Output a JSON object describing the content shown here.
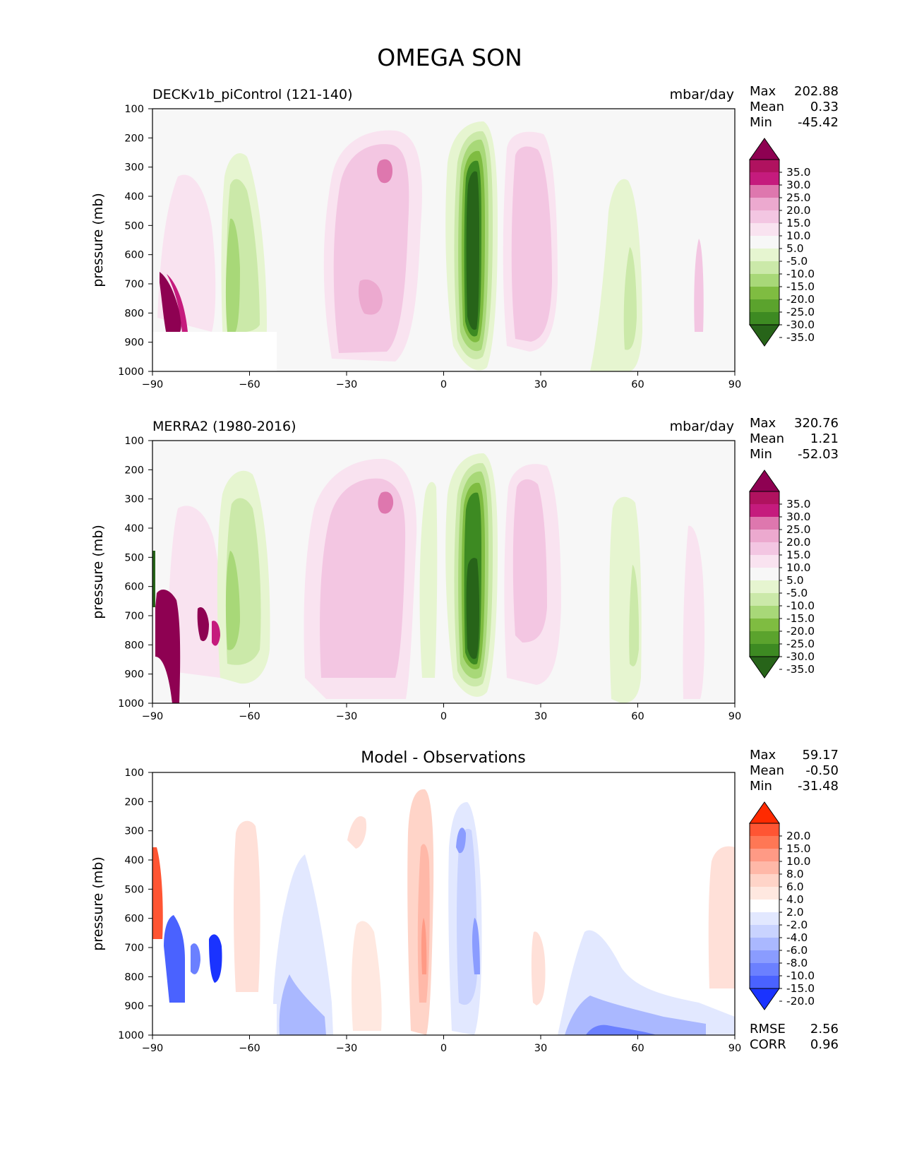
{
  "suptitle": "OMEGA SON",
  "chart_data": [
    {
      "type": "heatmap",
      "subtype": "filled-contour",
      "title_left": "DECKv1b_piControl (121-140)",
      "title_right": "mbar/day",
      "ylabel": "pressure (mb)",
      "xticks": [
        "−90",
        "−60",
        "−30",
        "0",
        "30",
        "60",
        "90"
      ],
      "yticks": [
        "100",
        "200",
        "300",
        "400",
        "500",
        "600",
        "700",
        "800",
        "900",
        "1000"
      ],
      "xlim": [
        -90,
        90
      ],
      "ylim": [
        1000,
        100
      ],
      "y_inverted": true,
      "stats": {
        "max_label": "Max",
        "max": "202.88",
        "mean_label": "Mean",
        "mean": "0.33",
        "min_label": "Min",
        "min": "-45.42"
      },
      "colorbar_labels": [
        "35.0",
        "30.0",
        "25.0",
        "20.0",
        "15.0",
        "10.0",
        "5.0",
        "-5.0",
        "-10.0",
        "-15.0",
        "-20.0",
        "-25.0",
        "-30.0",
        "-35.0"
      ],
      "colorbar_colors": [
        "#8e0152",
        "#b0125f",
        "#c51b7d",
        "#de77ae",
        "#eca9cf",
        "#f3c6e2",
        "#f9e3f0",
        "#f7f7f7",
        "#e6f5d0",
        "#cbe9a9",
        "#a8d878",
        "#7fbc41",
        "#5ba32d",
        "#3d8a22",
        "#276419"
      ],
      "features": [
        {
          "kind": "ascent",
          "lat": [
            4,
            13
          ],
          "p": [
            170,
            940
          ],
          "peak_min": -45.42,
          "label": "tropical ITCZ upward motion"
        },
        {
          "kind": "descent",
          "lat": [
            -35,
            -8
          ],
          "p": [
            180,
            960
          ],
          "value": 10
        },
        {
          "kind": "descent",
          "lat": [
            -20,
            -17
          ],
          "p": [
            270,
            330
          ],
          "value": 20
        },
        {
          "kind": "descent",
          "lat": [
            18,
            33
          ],
          "p": [
            180,
            950
          ],
          "value": 10
        },
        {
          "kind": "ascent",
          "lat": [
            -72,
            -52
          ],
          "p": [
            220,
            1000
          ],
          "value": -10
        },
        {
          "kind": "ascent",
          "lat": [
            -70,
            -65
          ],
          "p": [
            460,
            860
          ],
          "value": -20
        },
        {
          "kind": "ascent",
          "lat": [
            48,
            65
          ],
          "p": [
            240,
            1000
          ],
          "value": -5
        },
        {
          "kind": "descent",
          "lat": [
            -89,
            -82
          ],
          "p": [
            680,
            870
          ],
          "peak_max": 202.88
        }
      ]
    },
    {
      "type": "heatmap",
      "subtype": "filled-contour",
      "title_left": "MERRA2 (1980-2016)",
      "title_right": "mbar/day",
      "ylabel": "pressure (mb)",
      "xticks": [
        "−90",
        "−60",
        "−30",
        "0",
        "30",
        "60",
        "90"
      ],
      "yticks": [
        "100",
        "200",
        "300",
        "400",
        "500",
        "600",
        "700",
        "800",
        "900",
        "1000"
      ],
      "xlim": [
        -90,
        90
      ],
      "ylim": [
        1000,
        100
      ],
      "y_inverted": true,
      "stats": {
        "max_label": "Max",
        "max": "320.76",
        "mean_label": "Mean",
        "mean": "1.21",
        "min_label": "Min",
        "min": "-52.03"
      },
      "colorbar_labels": [
        "35.0",
        "30.0",
        "25.0",
        "20.0",
        "15.0",
        "10.0",
        "5.0",
        "-5.0",
        "-10.0",
        "-15.0",
        "-20.0",
        "-25.0",
        "-30.0",
        "-35.0"
      ],
      "colorbar_colors": [
        "#8e0152",
        "#b0125f",
        "#c51b7d",
        "#de77ae",
        "#eca9cf",
        "#f3c6e2",
        "#f9e3f0",
        "#f7f7f7",
        "#e6f5d0",
        "#cbe9a9",
        "#a8d878",
        "#7fbc41",
        "#5ba32d",
        "#3d8a22",
        "#276419"
      ],
      "features": [
        {
          "kind": "ascent",
          "lat": [
            4,
            13
          ],
          "p": [
            170,
            950
          ],
          "peak_min": -52.03,
          "label": "tropical ITCZ upward motion"
        },
        {
          "kind": "descent",
          "lat": [
            -42,
            -10
          ],
          "p": [
            180,
            1000
          ],
          "value": 10
        },
        {
          "kind": "descent",
          "lat": [
            -20,
            -17
          ],
          "p": [
            270,
            330
          ],
          "value": 20
        },
        {
          "kind": "descent",
          "lat": [
            18,
            33
          ],
          "p": [
            180,
            950
          ],
          "value": 10
        },
        {
          "kind": "ascent",
          "lat": [
            -72,
            -52
          ],
          "p": [
            200,
            1000
          ],
          "value": -10
        },
        {
          "kind": "ascent",
          "lat": [
            -70,
            -64
          ],
          "p": [
            460,
            880
          ],
          "value": -20
        },
        {
          "kind": "ascent",
          "lat": [
            50,
            64
          ],
          "p": [
            260,
            1000
          ],
          "value": -5
        },
        {
          "kind": "descent",
          "lat": [
            -89,
            -70
          ],
          "p": [
            680,
            1000
          ],
          "peak_max": 320.76
        }
      ]
    },
    {
      "type": "heatmap",
      "subtype": "filled-contour",
      "title_center": "Model - Observations",
      "ylabel": "pressure (mb)",
      "xticks": [
        "−90",
        "−60",
        "−30",
        "0",
        "30",
        "60",
        "90"
      ],
      "yticks": [
        "100",
        "200",
        "300",
        "400",
        "500",
        "600",
        "700",
        "800",
        "900",
        "1000"
      ],
      "xlim": [
        -90,
        90
      ],
      "ylim": [
        1000,
        100
      ],
      "y_inverted": true,
      "stats": {
        "max_label": "Max",
        "max": "59.17",
        "mean_label": "Mean",
        "mean": "-0.50",
        "min_label": "Min",
        "min": "-31.48"
      },
      "error_stats": {
        "rmse_label": "RMSE",
        "rmse": "2.56",
        "corr_label": "CORR",
        "corr": "0.96"
      },
      "colorbar_labels": [
        "20.0",
        "15.0",
        "10.0",
        "8.0",
        "6.0",
        "4.0",
        "2.0",
        "-2.0",
        "-4.0",
        "-6.0",
        "-8.0",
        "-10.0",
        "-15.0",
        "-20.0"
      ],
      "colorbar_colors": [
        "#ff2a00",
        "#ff5533",
        "#ff7755",
        "#ff9a85",
        "#ffb8a8",
        "#ffd4c8",
        "#ffe8e0",
        "#ffffff",
        "#e2e8ff",
        "#c9d3ff",
        "#aab8ff",
        "#8a9cff",
        "#6b80ff",
        "#4a62ff",
        "#1a33ff"
      ],
      "features": [
        {
          "kind": "positive",
          "lat": [
            -10,
            -1
          ],
          "p": [
            170,
            900
          ],
          "value": 4
        },
        {
          "kind": "negative",
          "lat": [
            2,
            12
          ],
          "p": [
            200,
            1000
          ],
          "value": -4
        },
        {
          "kind": "negative",
          "lat": [
            -55,
            -28
          ],
          "p": [
            380,
            1000
          ],
          "value": -4
        },
        {
          "kind": "negative",
          "lat": [
            38,
            88
          ],
          "p": [
            720,
            1000
          ],
          "value": -6
        },
        {
          "kind": "positive",
          "lat": [
            -68,
            -58
          ],
          "p": [
            270,
            860
          ],
          "value": 2
        },
        {
          "kind": "positive",
          "lat": [
            82,
            90
          ],
          "p": [
            350,
            880
          ],
          "value": 2
        },
        {
          "kind": "positive",
          "lat": [
            -31,
            -25
          ],
          "p": [
            240,
            330
          ],
          "value": 2
        },
        {
          "kind": "negative",
          "lat": [
            -86,
            -70
          ],
          "p": [
            660,
            860
          ],
          "peak_min": -31.48
        },
        {
          "kind": "positive",
          "lat": [
            -90,
            -86
          ],
          "p": [
            460,
            820
          ],
          "peak_max": 59.17
        }
      ]
    }
  ]
}
